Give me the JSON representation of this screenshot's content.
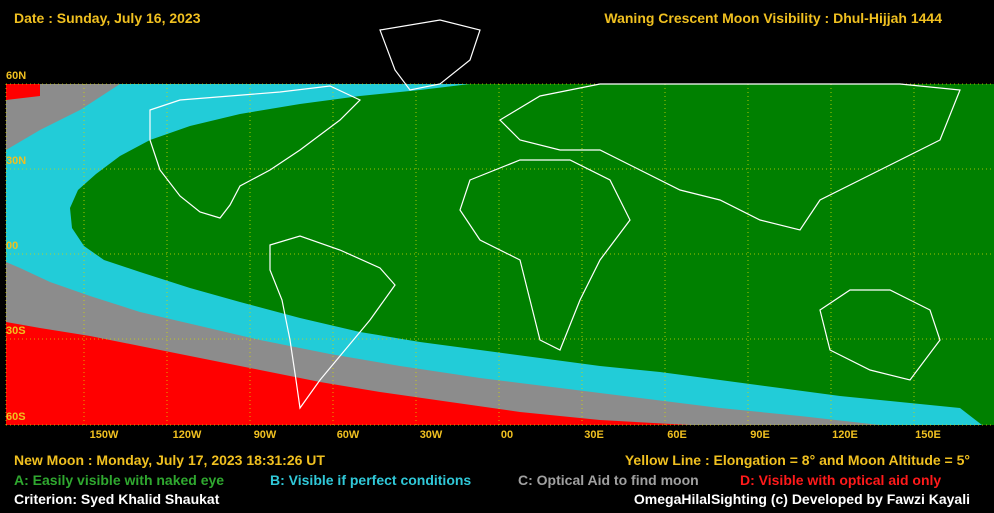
{
  "header": {
    "date": "Date : Sunday, July 16, 2023",
    "title": "Waning Crescent Moon Visibility : Dhul-Hijjah 1444"
  },
  "lat_labels": [
    "60N",
    "30N",
    "00",
    "30S",
    "60S"
  ],
  "lon_labels": [
    "150W",
    "120W",
    "90W",
    "60W",
    "30W",
    "00",
    "30E",
    "60E",
    "90E",
    "120E",
    "150E"
  ],
  "footer": {
    "new_moon": "New Moon : Monday, July 17, 2023  18:31:26  UT",
    "yellow_line": "Yellow Line : Elongation = 8° and Moon Altitude = 5°",
    "criterion": "Criterion: Syed Khalid Shaukat",
    "credit": "OmegaHilalSighting  (c)  Developed by Fawzi Kayali"
  },
  "legend": [
    {
      "key": "A",
      "label": "A: Easily visible with naked eye",
      "color": "#2fa82f"
    },
    {
      "key": "B",
      "label": "B: Visible if perfect conditions",
      "color": "#30c8d8"
    },
    {
      "key": "C",
      "label": "C: Optical Aid to find moon",
      "color": "#a0a0a0"
    },
    {
      "key": "D",
      "label": "D: Visible with optical aid only",
      "color": "#ff1a1a"
    }
  ],
  "colors": {
    "zone_a": "#008000",
    "zone_b": "#22ccd8",
    "zone_c": "#8c8c8c",
    "zone_d": "#ff0000",
    "grid_line": "#d8d800",
    "coast": "#ffffff",
    "label": "#f0c020"
  }
}
